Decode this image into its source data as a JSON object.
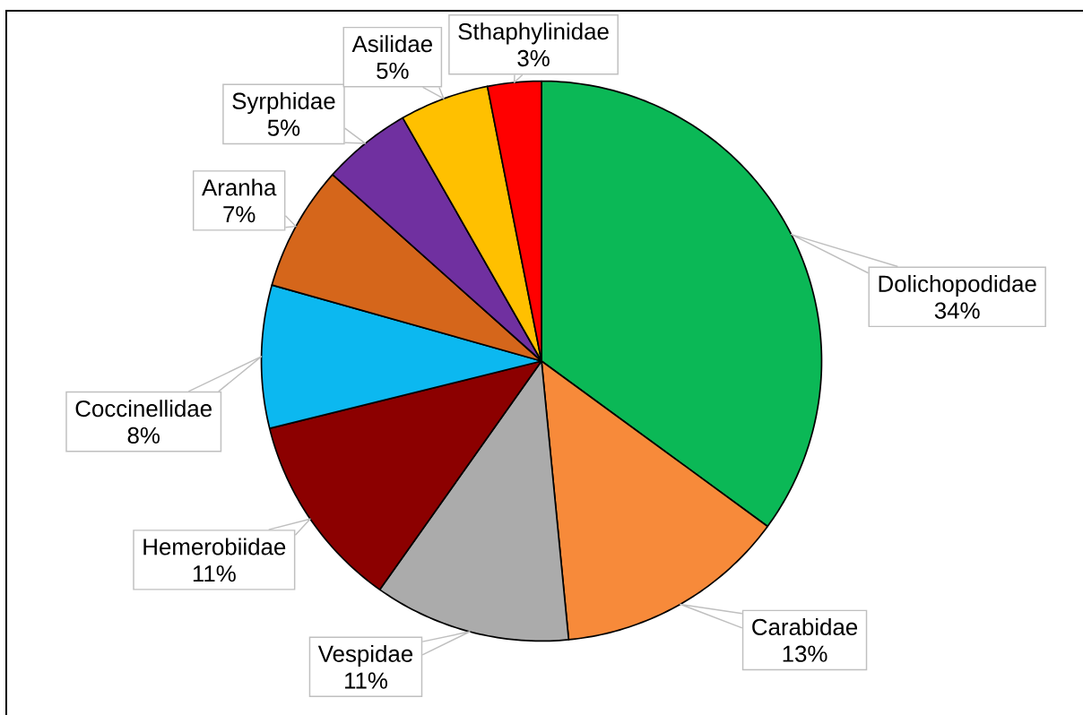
{
  "chart_data": {
    "type": "pie",
    "categories": [
      "Dolichopodidae",
      "Carabidae",
      "Vespidae",
      "Hemerobiidae",
      "Coccinellidae",
      "Aranha",
      "Syrphidae",
      "Asilidae",
      "Sthaphylinidae"
    ],
    "values": [
      34,
      13,
      11,
      11,
      8,
      7,
      5,
      5,
      3
    ],
    "value_labels": [
      "34%",
      "13%",
      "11%",
      "11%",
      "8%",
      "7%",
      "5%",
      "5%",
      "3%"
    ],
    "colors": [
      "#0bb856",
      "#f78a3a",
      "#ababab",
      "#8c0000",
      "#0cb8f0",
      "#d5661b",
      "#7030a0",
      "#ffc000",
      "#ff0000"
    ]
  }
}
